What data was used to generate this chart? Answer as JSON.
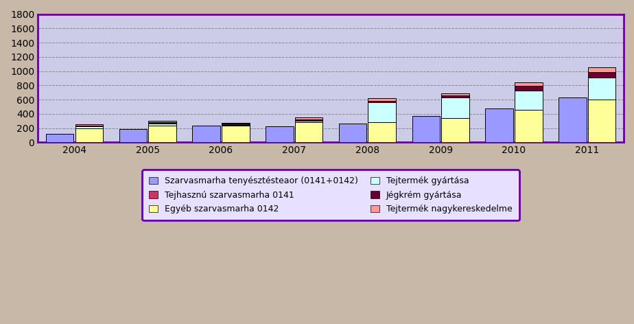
{
  "years": [
    "2004",
    "2005",
    "2006",
    "2007",
    "2008",
    "2009",
    "2010",
    "2011"
  ],
  "series_names": [
    "Szarvasmarha tenyésztésteaor (0141+0142)",
    "Tejhasznú szarvasmarha 0141",
    "Egyéb szarvasmarha 0142",
    "Tejtermék gyártása",
    "Jégkrém gyártása",
    "Tejtermék nagykereskedelme"
  ],
  "legend_labels": [
    "Szarvasmarha tenyésztésteaor (0141+0142)",
    "Tejhasznú szarvasmarha 0141",
    "Egyéb szarvasmarha 0142",
    "Tejtermék gyártása",
    "Jégkrém gyártása",
    "Tejtermék nagykereskedelme"
  ],
  "bar1_values": [
    120,
    185,
    240,
    230,
    265,
    370,
    480,
    635
  ],
  "bar2_stacks": {
    "Tejhasznú szarvasmarha 0141": [
      0,
      0,
      0,
      0,
      0,
      0,
      0,
      0
    ],
    "Egyéb szarvasmarha 0142": [
      200,
      240,
      235,
      280,
      280,
      340,
      455,
      600
    ],
    "Tejtermék gyártása": [
      25,
      25,
      15,
      25,
      280,
      290,
      275,
      310
    ],
    "Jégkrém gyártása": [
      10,
      15,
      10,
      20,
      20,
      30,
      60,
      80
    ],
    "Tejtermék nagykereskedelme": [
      20,
      20,
      15,
      25,
      45,
      30,
      55,
      60
    ]
  },
  "colors": {
    "Szarvasmarha tenyésztésteaor (0141+0142)": "#9999FF",
    "Tejhasznú szarvasmarha 0141": "#CC3366",
    "Egyéb szarvasmarha 0142": "#FFFF99",
    "Tejtermék gyártása": "#CCFFFF",
    "Jégkrém gyártása": "#660033",
    "Tejtermék nagykereskedelme": "#FF9999"
  },
  "ylim": [
    0,
    1800
  ],
  "yticks": [
    0,
    200,
    400,
    600,
    800,
    1000,
    1200,
    1400,
    1600,
    1800
  ],
  "plot_bg": "#CCCCE8",
  "fig_bg": "#C8B8A8",
  "legend_bg": "#E8E0FF",
  "spine_color": "#660099",
  "bar_width": 0.38,
  "bar_gap": 0.02
}
